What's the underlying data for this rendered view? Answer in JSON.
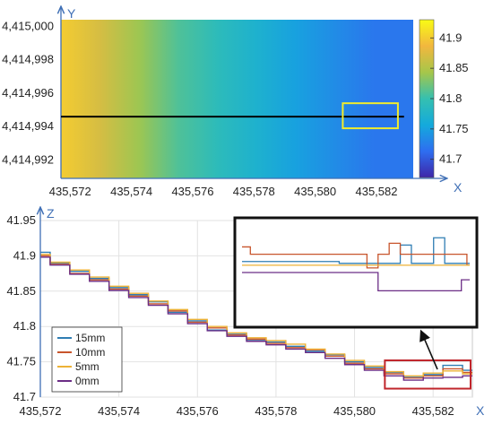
{
  "chart_data": [
    {
      "type": "heatmap",
      "title": "",
      "xlabel": "X",
      "ylabel": "Y",
      "x_ticks": [
        "435,572",
        "435,574",
        "435,576",
        "435,578",
        "435,580",
        "435,582"
      ],
      "y_ticks": [
        "4,415,000",
        "4,414,998",
        "4,414,996",
        "4,414,994",
        "4,414,992"
      ],
      "x_tick_values": [
        435572,
        435574,
        435576,
        435578,
        435580,
        435582
      ],
      "y_tick_values": [
        4415000,
        4414998,
        4414996,
        4414994,
        4414992
      ],
      "xlim": [
        435571.7,
        435583.2
      ],
      "ylim": [
        4414990.9,
        4415000.4
      ],
      "colorbar": {
        "ticks": [
          "41.9",
          "41.85",
          "41.8",
          "41.75",
          "41.7"
        ],
        "tick_values": [
          41.9,
          41.85,
          41.8,
          41.75,
          41.7
        ],
        "range": [
          41.67,
          41.93
        ],
        "colors": [
          "#3e26a8",
          "#2e6ef0",
          "#14aadc",
          "#35c0b0",
          "#a6c64a",
          "#f2b73e",
          "#f9fb15"
        ]
      },
      "z_profile_columns": [
        41.9,
        41.87,
        41.84,
        41.81,
        41.79,
        41.77,
        41.75,
        41.735,
        41.72,
        41.72
      ],
      "profile_line": {
        "y": 4414994.6,
        "x_range": [
          435571.7,
          435582.9
        ],
        "color": "#000000"
      },
      "highlight_box": {
        "x": [
          435580.9,
          435582.7
        ],
        "y": [
          4414993.9,
          4414995.4
        ],
        "color": "#f2ec2c"
      }
    },
    {
      "type": "line",
      "title": "",
      "xlabel": "X",
      "ylabel": "Z",
      "x_ticks": [
        "435,572",
        "435,574",
        "435,576",
        "435,578",
        "435,580",
        "435,582"
      ],
      "y_ticks": [
        "41.95",
        "41.9",
        "41.85",
        "41.8",
        "41.75",
        "41.7"
      ],
      "x_tick_values": [
        435572,
        435574,
        435576,
        435578,
        435580,
        435582
      ],
      "y_tick_values": [
        41.95,
        41.9,
        41.85,
        41.8,
        41.75,
        41.7
      ],
      "xlim": [
        435572,
        435583
      ],
      "ylim": [
        41.7,
        41.95
      ],
      "grid": true,
      "legend_position": "bottom-left",
      "x": [
        435572,
        435572.5,
        435573,
        435573.5,
        435574,
        435574.5,
        435575,
        435575.5,
        435576,
        435576.5,
        435577,
        435577.5,
        435578,
        435578.5,
        435579,
        435579.5,
        435580,
        435580.5,
        435581,
        435581.5,
        435582,
        435582.5,
        435583
      ],
      "series": [
        {
          "name": "15mm",
          "color": "#2f7db3",
          "values": [
            41.905,
            41.89,
            41.878,
            41.868,
            41.855,
            41.845,
            41.835,
            41.82,
            41.808,
            41.795,
            41.79,
            41.78,
            41.778,
            41.772,
            41.765,
            41.76,
            41.75,
            41.742,
            41.735,
            41.728,
            41.732,
            41.745,
            41.738
          ]
        },
        {
          "name": "10mm",
          "color": "#c8552c",
          "values": [
            41.9,
            41.888,
            41.875,
            41.866,
            41.853,
            41.843,
            41.832,
            41.822,
            41.806,
            41.798,
            41.788,
            41.782,
            41.776,
            41.77,
            41.767,
            41.758,
            41.748,
            41.74,
            41.733,
            41.727,
            41.73,
            41.74,
            41.735
          ]
        },
        {
          "name": "5mm",
          "color": "#edb236",
          "values": [
            41.902,
            41.891,
            41.88,
            41.87,
            41.857,
            41.847,
            41.836,
            41.824,
            41.81,
            41.8,
            41.791,
            41.784,
            41.78,
            41.775,
            41.768,
            41.761,
            41.752,
            41.744,
            41.736,
            41.73,
            41.734,
            41.737,
            41.733
          ]
        },
        {
          "name": "0mm",
          "color": "#6b2d86",
          "values": [
            41.898,
            41.887,
            41.874,
            41.864,
            41.851,
            41.841,
            41.83,
            41.818,
            41.804,
            41.794,
            41.786,
            41.779,
            41.774,
            41.768,
            41.763,
            41.755,
            41.746,
            41.738,
            41.73,
            41.724,
            41.727,
            41.728,
            41.73
          ]
        }
      ],
      "zoom_box": {
        "x": [
          435581,
          435583
        ],
        "y": [
          41.712,
          41.752
        ],
        "color": "#c0262c"
      },
      "inset": {
        "description_visible": false,
        "border": "#111111",
        "series_levels": [
          {
            "name": "15mm",
            "color": "#2f7db3",
            "values": [
              0.38,
              0.38,
              0.38,
              0.38,
              0.38,
              0.38,
              0.38,
              0.38,
              0.38,
              0.38,
              0.38,
              0.38,
              0.38,
              0.38,
              0.38,
              0.38,
              0.38,
              0.38,
              0.4,
              0.4,
              0.4,
              0.4,
              0.4,
              0.4,
              0.4,
              0.4,
              0.4,
              0.4,
              0.4,
              0.2,
              0.2,
              0.4,
              0.4,
              0.4,
              0.4,
              0.12,
              0.12,
              0.4,
              0.4,
              0.4,
              0.4,
              0.4
            ]
          },
          {
            "name": "10mm",
            "color": "#c8552c",
            "values": [
              0.22,
              0.22,
              0.3,
              0.3,
              0.3,
              0.3,
              0.3,
              0.3,
              0.3,
              0.3,
              0.3,
              0.3,
              0.3,
              0.3,
              0.3,
              0.3,
              0.3,
              0.3,
              0.3,
              0.3,
              0.3,
              0.3,
              0.3,
              0.45,
              0.45,
              0.3,
              0.3,
              0.18,
              0.18,
              0.3,
              0.3,
              0.3,
              0.3,
              0.3,
              0.3,
              0.3,
              0.3,
              0.3,
              0.3,
              0.3,
              0.3,
              0.42
            ]
          },
          {
            "name": "5mm",
            "color": "#edb236",
            "values": [
              0.42,
              0.42,
              0.42,
              0.42,
              0.42,
              0.42,
              0.42,
              0.42,
              0.42,
              0.42,
              0.42,
              0.42,
              0.42,
              0.42,
              0.42,
              0.42,
              0.42,
              0.42,
              0.42,
              0.42,
              0.42,
              0.42,
              0.42,
              0.42,
              0.42,
              0.42,
              0.42,
              0.42,
              0.42,
              0.42,
              0.42,
              0.42,
              0.42,
              0.42,
              0.42,
              0.42,
              0.42,
              0.42,
              0.42,
              0.42,
              0.42,
              0.42
            ]
          },
          {
            "name": "0mm",
            "color": "#6b2d86",
            "values": [
              0.5,
              0.5,
              0.5,
              0.5,
              0.5,
              0.5,
              0.5,
              0.5,
              0.5,
              0.5,
              0.5,
              0.5,
              0.5,
              0.5,
              0.5,
              0.5,
              0.5,
              0.5,
              0.5,
              0.5,
              0.5,
              0.5,
              0.5,
              0.5,
              0.5,
              0.7,
              0.7,
              0.7,
              0.7,
              0.7,
              0.7,
              0.7,
              0.7,
              0.7,
              0.7,
              0.7,
              0.7,
              0.7,
              0.7,
              0.7,
              0.58,
              0.58
            ]
          }
        ]
      }
    }
  ]
}
